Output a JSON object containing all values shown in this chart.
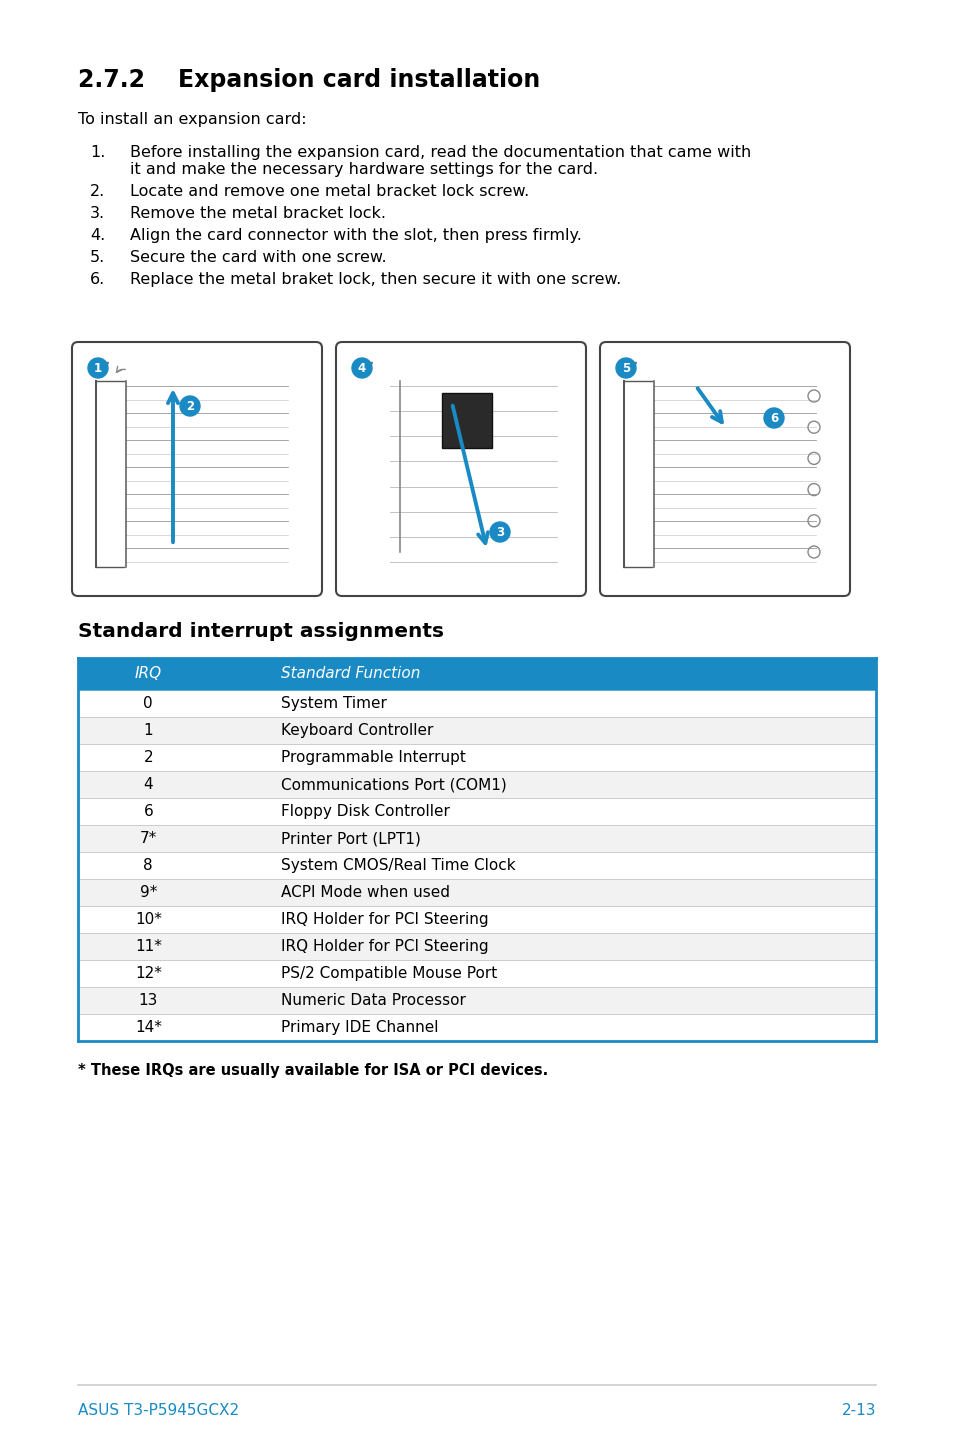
{
  "title": "2.7.2    Expansion card installation",
  "subtitle": "To install an expansion card:",
  "steps": [
    "Before installing the expansion card, read the documentation that came with\nit and make the necessary hardware settings for the card.",
    "Locate and remove one metal bracket lock screw.",
    "Remove the metal bracket lock.",
    "Align the card connector with the slot, then press firmly.",
    "Secure the card with one screw.",
    "Replace the metal braket lock, then secure it with one screw."
  ],
  "section_title": "Standard interrupt assignments",
  "table_header": [
    "IRQ",
    "Standard Function"
  ],
  "table_header_bg": "#1a8ac4",
  "table_header_color": "#ffffff",
  "table_rows": [
    [
      "0",
      "System Timer"
    ],
    [
      "1",
      "Keyboard Controller"
    ],
    [
      "2",
      "Programmable Interrupt"
    ],
    [
      "4",
      "Communications Port (COM1)"
    ],
    [
      "6",
      "Floppy Disk Controller"
    ],
    [
      "7*",
      "Printer Port (LPT1)"
    ],
    [
      "8",
      "System CMOS/Real Time Clock"
    ],
    [
      "9*",
      "ACPI Mode when used"
    ],
    [
      "10*",
      "IRQ Holder for PCI Steering"
    ],
    [
      "11*",
      "IRQ Holder for PCI Steering"
    ],
    [
      "12*",
      "PS/2 Compatible Mouse Port"
    ],
    [
      "13",
      "Numeric Data Processor"
    ],
    [
      "14*",
      "Primary IDE Channel"
    ]
  ],
  "table_border_color": "#1a8ac4",
  "table_row_odd": "#ffffff",
  "table_row_even": "#f2f2f2",
  "footnote": "* These IRQs are usually available for ISA or PCI devices.",
  "footer_left": "ASUS T3-P5945GCX2",
  "footer_right": "2-13",
  "bg_color": "#ffffff",
  "text_color": "#000000"
}
